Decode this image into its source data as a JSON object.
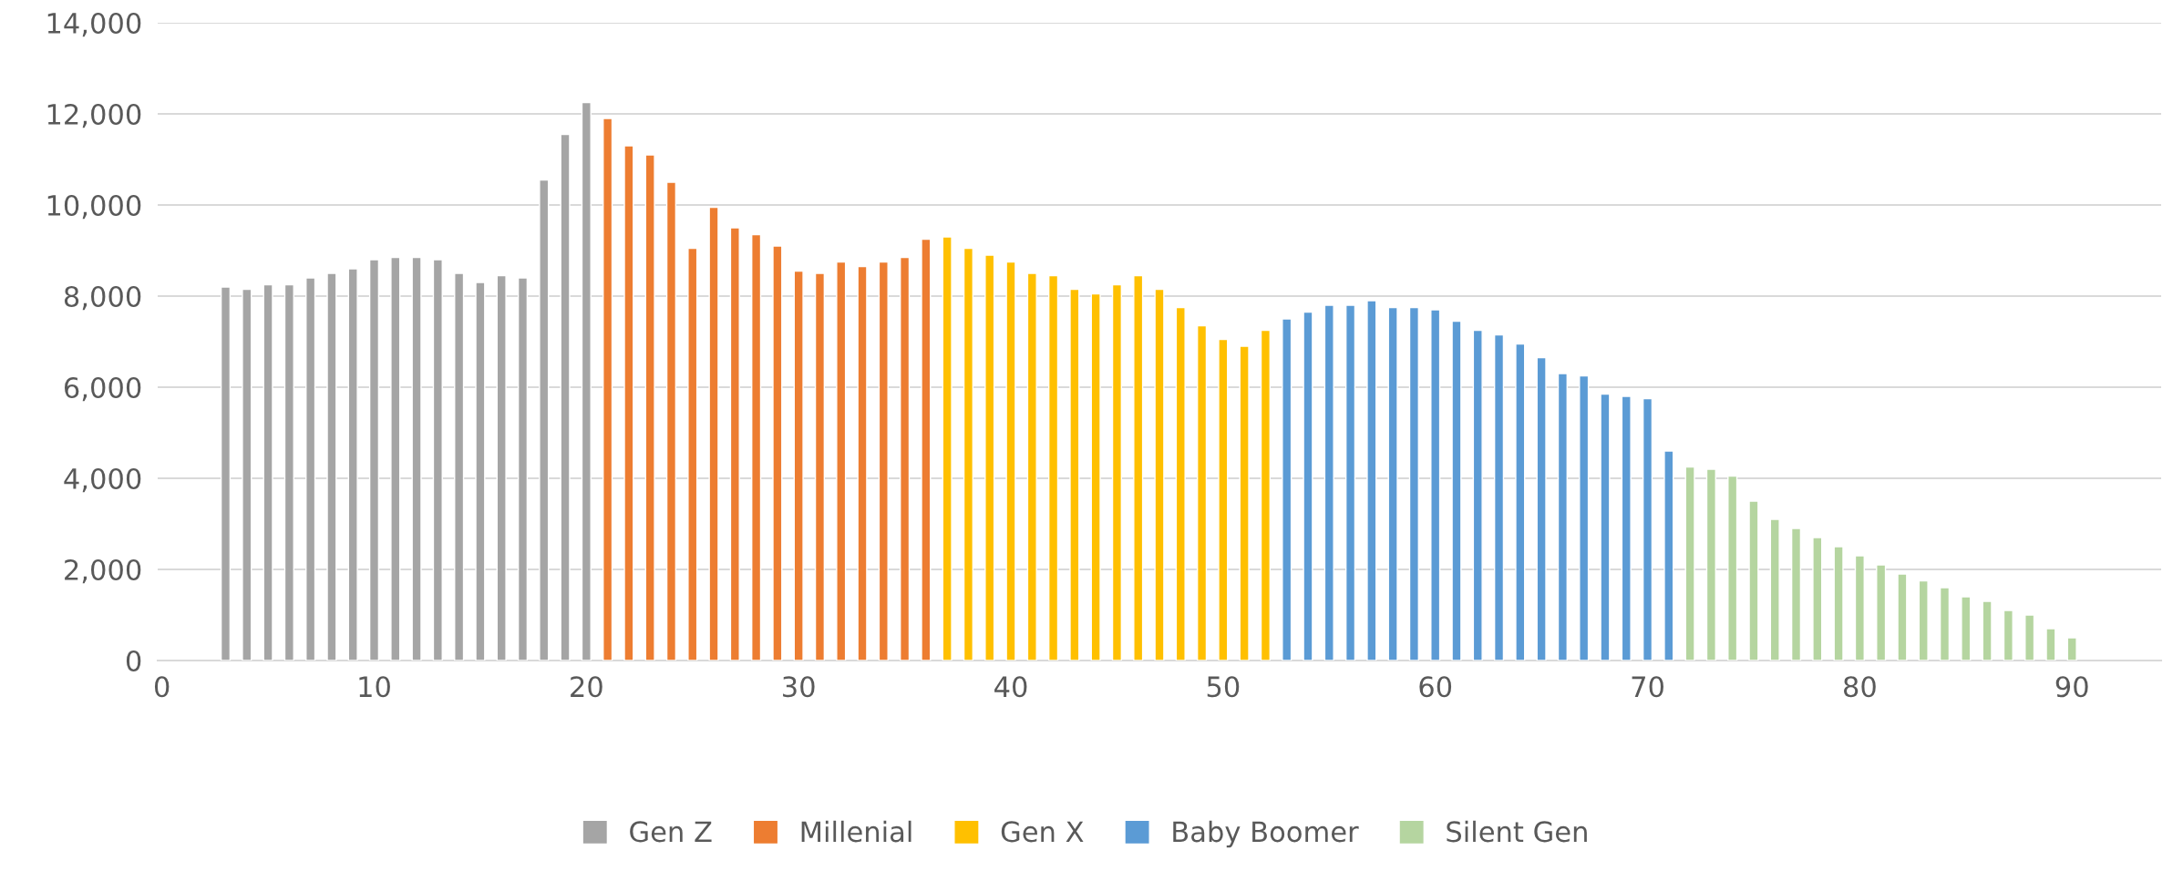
{
  "chart_data": {
    "type": "bar",
    "xlim": [
      -0.2,
      94.2
    ],
    "xticks": [
      0,
      10,
      20,
      30,
      40,
      50,
      60,
      70,
      80,
      90
    ],
    "ylim": [
      0,
      14000
    ],
    "yticks": [
      0,
      {
        "value": 2000,
        "label": "2,000"
      },
      {
        "value": 4000,
        "label": "4,000"
      },
      {
        "value": 6000,
        "label": "6,000"
      },
      {
        "value": 8000,
        "label": "8,000"
      },
      {
        "value": 10000,
        "label": "10,000"
      },
      {
        "value": 12000,
        "label": "12,000"
      },
      {
        "value": 14000,
        "label": "14,000"
      }
    ],
    "grid": "y",
    "legend": "bottom",
    "series": [
      {
        "name": "Gen Z",
        "color": "#a5a5a5",
        "x": [
          3,
          4,
          5,
          6,
          7,
          8,
          9,
          10,
          11,
          12,
          13,
          14,
          15,
          16,
          17,
          18,
          19,
          20
        ],
        "values": [
          8200,
          8150,
          8250,
          8250,
          8400,
          8500,
          8600,
          8800,
          8850,
          8850,
          8800,
          8500,
          8300,
          8450,
          8400,
          10550,
          11550,
          12250
        ]
      },
      {
        "name": "Millenial",
        "color": "#ed7d31",
        "x": [
          21,
          22,
          23,
          24,
          25,
          26,
          27,
          28,
          29,
          30,
          31,
          32,
          33,
          34,
          35,
          36
        ],
        "values": [
          11900,
          11300,
          11100,
          10500,
          9050,
          9950,
          9500,
          9350,
          9100,
          8550,
          8500,
          8750,
          8650,
          8750,
          8850,
          9250
        ]
      },
      {
        "name": "Gen X",
        "color": "#ffc000",
        "x": [
          37,
          38,
          39,
          40,
          41,
          42,
          43,
          44,
          45,
          46,
          47,
          48,
          49,
          50,
          51,
          52
        ],
        "values": [
          9300,
          9050,
          8900,
          8750,
          8500,
          8450,
          8150,
          8050,
          8250,
          8450,
          8150,
          7750,
          7350,
          7050,
          6900,
          7250
        ]
      },
      {
        "name": "Baby Boomer",
        "color": "#5b9bd5",
        "x": [
          53,
          54,
          55,
          56,
          57,
          58,
          59,
          60,
          61,
          62,
          63,
          64,
          65,
          66,
          67,
          68,
          69,
          70,
          71
        ],
        "values": [
          7500,
          7650,
          7800,
          7800,
          7900,
          7750,
          7750,
          7700,
          7450,
          7250,
          7150,
          6950,
          6650,
          6300,
          6250,
          5850,
          5800,
          5750,
          4600
        ]
      },
      {
        "name": "Silent Gen",
        "color": "#b5d5a0",
        "x": [
          72,
          73,
          74,
          75,
          76,
          77,
          78,
          79,
          80,
          81,
          82,
          83,
          84,
          85,
          86,
          87,
          88,
          89,
          90
        ],
        "values": [
          4250,
          4200,
          4050,
          3500,
          3100,
          2900,
          2700,
          2500,
          2300,
          2100,
          1900,
          1750,
          1600,
          1400,
          1300,
          1100,
          1000,
          700,
          500
        ]
      }
    ]
  }
}
